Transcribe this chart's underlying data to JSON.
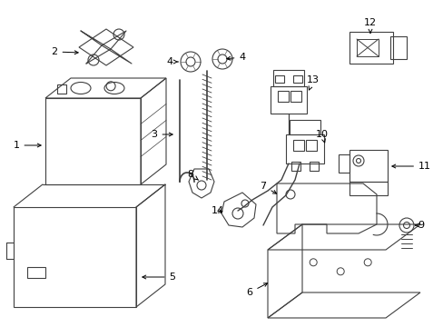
{
  "bg_color": "#ffffff",
  "line_color": "#404040",
  "label_color": "#000000",
  "fig_w": 4.89,
  "fig_h": 3.6,
  "dpi": 100
}
